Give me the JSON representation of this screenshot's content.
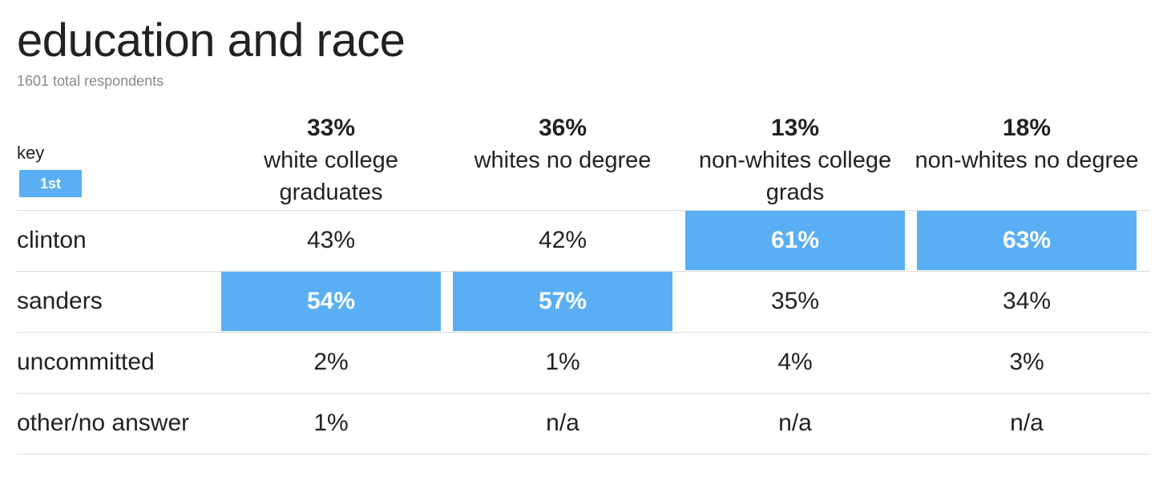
{
  "title": "education and race",
  "subtitle": "1601 total respondents",
  "key": {
    "label": "key",
    "swatch_label": "1st",
    "swatch_color": "#5aaef4"
  },
  "chart_data": {
    "type": "table",
    "title": "education and race",
    "subtitle": "1601 total respondents",
    "columns": [
      {
        "share": "33%",
        "name": "white college graduates"
      },
      {
        "share": "36%",
        "name": "whites no degree"
      },
      {
        "share": "13%",
        "name": "non-whites college grads"
      },
      {
        "share": "18%",
        "name": "non-whites no degree"
      }
    ],
    "rows": [
      {
        "label": "clinton",
        "values": [
          "43%",
          "42%",
          "61%",
          "63%"
        ],
        "first": [
          false,
          false,
          true,
          true
        ]
      },
      {
        "label": "sanders",
        "values": [
          "54%",
          "57%",
          "35%",
          "34%"
        ],
        "first": [
          true,
          true,
          false,
          false
        ]
      },
      {
        "label": "uncommitted",
        "values": [
          "2%",
          "1%",
          "4%",
          "3%"
        ],
        "first": [
          false,
          false,
          false,
          false
        ]
      },
      {
        "label": "other/no answer",
        "values": [
          "1%",
          "n/a",
          "n/a",
          "n/a"
        ],
        "first": [
          false,
          false,
          false,
          false
        ]
      }
    ],
    "highlight_color": "#5aaef4"
  }
}
